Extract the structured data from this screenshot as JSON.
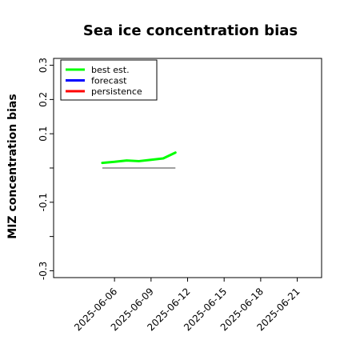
{
  "chart_data": {
    "type": "line",
    "title": "Sea ice concentration bias",
    "xlabel": "",
    "ylabel": "MIZ concentration bias",
    "y_ticks": [
      {
        "value": 0.3,
        "label": "0.3"
      },
      {
        "value": 0.2,
        "label": "0.2"
      },
      {
        "value": 0.1,
        "label": "0.1"
      },
      {
        "value": -0.1,
        "label": "-0.1"
      },
      {
        "value": -0.3,
        "label": "-0.3"
      }
    ],
    "y_minor_ticks": [
      0.0,
      -0.2
    ],
    "ylim": [
      -0.32,
      0.32
    ],
    "x_ticks": [
      {
        "value": "2025-06-06",
        "label": "2025-06-06",
        "color": "#000000"
      },
      {
        "value": "2025-06-09",
        "label": "2025-06-09",
        "color": "#000000"
      },
      {
        "value": "2025-06-12",
        "label": "2025-06-12",
        "color": "#228b22"
      },
      {
        "value": "2025-06-15",
        "label": "2025-06-15",
        "color": "#000000"
      },
      {
        "value": "2025-06-18",
        "label": "2025-06-18",
        "color": "#000000"
      },
      {
        "value": "2025-06-21",
        "label": "2025-06-21",
        "color": "#000000"
      }
    ],
    "xlim": [
      "2025-06-01",
      "2025-06-23"
    ],
    "series": [
      {
        "name": "best est.",
        "color": "#00ff00",
        "x": [
          "2025-06-05",
          "2025-06-06",
          "2025-06-07",
          "2025-06-08",
          "2025-06-09",
          "2025-06-10",
          "2025-06-11"
        ],
        "y": [
          0.015,
          0.018,
          0.022,
          0.02,
          0.024,
          0.028,
          0.045
        ]
      },
      {
        "name": "forecast",
        "color": "#0000ff",
        "x": [],
        "y": []
      },
      {
        "name": "persistence",
        "color": "#ff0000",
        "x": [],
        "y": []
      }
    ],
    "reference_line": {
      "color": "#808080",
      "x": [
        "2025-06-05",
        "2025-06-11"
      ],
      "y": [
        0.0,
        0.0
      ]
    },
    "legend_position": "upper-left",
    "grid": false
  }
}
